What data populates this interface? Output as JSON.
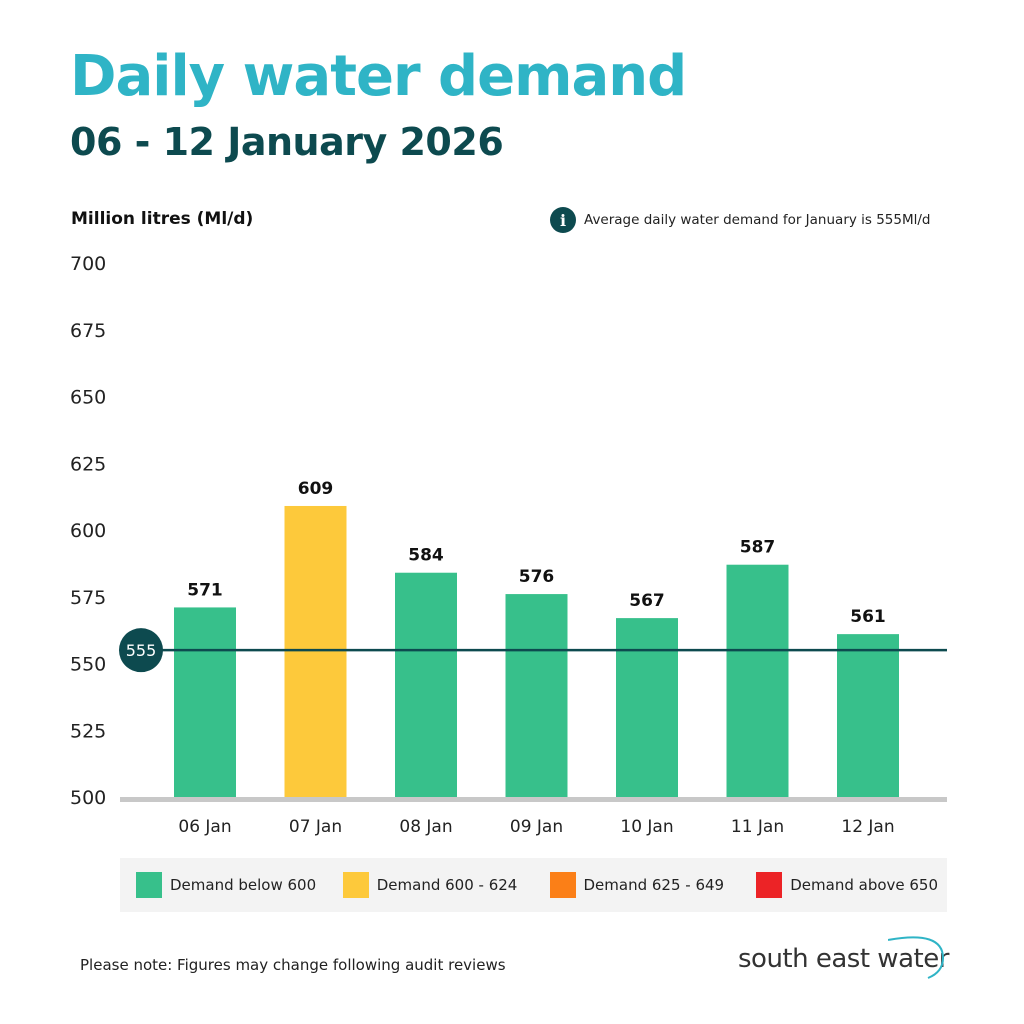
{
  "header": {
    "title": "Daily water demand",
    "subtitle": "06 - 12 January 2026"
  },
  "info_note": {
    "icon": "info-icon",
    "text": "Average daily water demand for January  is 555Ml/d"
  },
  "footer": {
    "note": "Please note: Figures may change following audit reviews",
    "logo_text": "south east water"
  },
  "chart_data": {
    "type": "bar",
    "ylabel": "Million litres (Ml/d)",
    "ylim": [
      500,
      700
    ],
    "yticks": [
      700,
      675,
      650,
      625,
      600,
      575,
      550,
      525,
      500
    ],
    "grid": false,
    "categories": [
      "06 Jan",
      "07 Jan",
      "08 Jan",
      "09 Jan",
      "10 Jan",
      "11 Jan",
      "12 Jan"
    ],
    "values": [
      571,
      609,
      584,
      576,
      567,
      587,
      561
    ],
    "reference_line": {
      "value": 555,
      "label": "555",
      "color": "#0d4a4f"
    },
    "legend_placement": "bottom",
    "legend": [
      {
        "label": "Demand below 600",
        "color": "#37c08b",
        "min": 0,
        "max": 599
      },
      {
        "label": "Demand 600 - 624",
        "color": "#fdc93b",
        "min": 600,
        "max": 624
      },
      {
        "label": "Demand 625 - 649",
        "color": "#fb7f17",
        "min": 625,
        "max": 649
      },
      {
        "label": "Demand above 650",
        "color": "#ec2326",
        "min": 650,
        "max": 100000
      }
    ]
  }
}
